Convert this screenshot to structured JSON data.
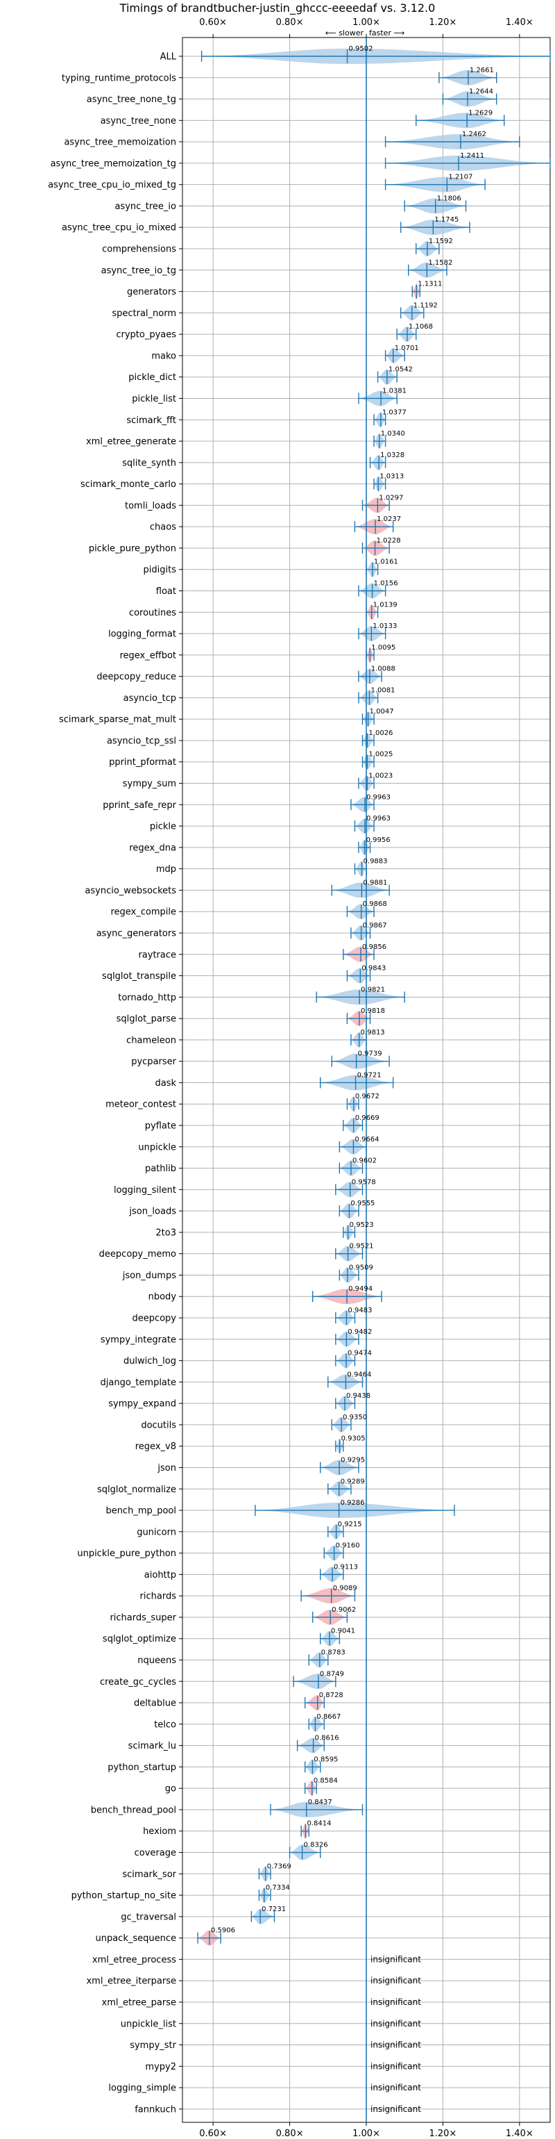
{
  "chart_data": {
    "type": "violin",
    "title": "Timings of brandtbucher-justin_ghccc-eeeedaf vs. 3.12.0",
    "annotation": {
      "slower": "⟵ slower",
      "faster": "faster ⟶"
    },
    "xlim": [
      0.52,
      1.48
    ],
    "xticks": [
      0.6,
      0.8,
      1.0,
      1.2,
      1.4
    ],
    "xtick_labels": [
      "0.60×",
      "0.80×",
      "1.00×",
      "1.20×",
      "1.40×"
    ],
    "grid": true,
    "reference_line": 1.0,
    "insignificant_text": "insignificant",
    "colors": {
      "faster": "#a6c8e6",
      "slower": "#f4a7ab",
      "line": "#1f77b4",
      "grid": "#b0b0b0"
    },
    "benchmarks": [
      {
        "name": "ALL",
        "mean": 0.9502,
        "min": 0.57,
        "max": 1.48,
        "status": "neutral"
      },
      {
        "name": "typing_runtime_protocols",
        "mean": 1.2661,
        "min": 1.19,
        "max": 1.34,
        "status": "faster"
      },
      {
        "name": "async_tree_none_tg",
        "mean": 1.2644,
        "min": 1.2,
        "max": 1.34,
        "status": "faster"
      },
      {
        "name": "async_tree_none",
        "mean": 1.2629,
        "min": 1.13,
        "max": 1.36,
        "status": "faster"
      },
      {
        "name": "async_tree_memoization",
        "mean": 1.2462,
        "min": 1.05,
        "max": 1.4,
        "status": "faster"
      },
      {
        "name": "async_tree_memoization_tg",
        "mean": 1.2411,
        "min": 1.05,
        "max": 1.48,
        "status": "faster"
      },
      {
        "name": "async_tree_cpu_io_mixed_tg",
        "mean": 1.2107,
        "min": 1.05,
        "max": 1.31,
        "status": "faster"
      },
      {
        "name": "async_tree_io",
        "mean": 1.1806,
        "min": 1.1,
        "max": 1.26,
        "status": "faster"
      },
      {
        "name": "async_tree_cpu_io_mixed",
        "mean": 1.1745,
        "min": 1.09,
        "max": 1.27,
        "status": "faster"
      },
      {
        "name": "comprehensions",
        "mean": 1.1592,
        "min": 1.13,
        "max": 1.19,
        "status": "faster"
      },
      {
        "name": "async_tree_io_tg",
        "mean": 1.1582,
        "min": 1.11,
        "max": 1.21,
        "status": "faster"
      },
      {
        "name": "generators",
        "mean": 1.1311,
        "min": 1.12,
        "max": 1.14,
        "status": "slower"
      },
      {
        "name": "spectral_norm",
        "mean": 1.1192,
        "min": 1.09,
        "max": 1.15,
        "status": "faster"
      },
      {
        "name": "crypto_pyaes",
        "mean": 1.1068,
        "min": 1.08,
        "max": 1.13,
        "status": "faster"
      },
      {
        "name": "mako",
        "mean": 1.0701,
        "min": 1.05,
        "max": 1.1,
        "status": "faster"
      },
      {
        "name": "pickle_dict",
        "mean": 1.0542,
        "min": 1.03,
        "max": 1.08,
        "status": "faster"
      },
      {
        "name": "pickle_list",
        "mean": 1.0381,
        "min": 0.98,
        "max": 1.08,
        "status": "faster"
      },
      {
        "name": "scimark_fft",
        "mean": 1.0377,
        "min": 1.02,
        "max": 1.05,
        "status": "faster"
      },
      {
        "name": "xml_etree_generate",
        "mean": 1.034,
        "min": 1.02,
        "max": 1.05,
        "status": "faster"
      },
      {
        "name": "sqlite_synth",
        "mean": 1.0328,
        "min": 1.01,
        "max": 1.05,
        "status": "faster"
      },
      {
        "name": "scimark_monte_carlo",
        "mean": 1.0313,
        "min": 1.02,
        "max": 1.05,
        "status": "faster"
      },
      {
        "name": "tomli_loads",
        "mean": 1.0297,
        "min": 0.99,
        "max": 1.06,
        "status": "slower"
      },
      {
        "name": "chaos",
        "mean": 1.0237,
        "min": 0.97,
        "max": 1.07,
        "status": "slower"
      },
      {
        "name": "pickle_pure_python",
        "mean": 1.0228,
        "min": 0.99,
        "max": 1.06,
        "status": "slower"
      },
      {
        "name": "pidigits",
        "mean": 1.0161,
        "min": 1.0,
        "max": 1.03,
        "status": "faster"
      },
      {
        "name": "float",
        "mean": 1.0156,
        "min": 0.98,
        "max": 1.05,
        "status": "faster"
      },
      {
        "name": "coroutines",
        "mean": 1.0139,
        "min": 1.0,
        "max": 1.03,
        "status": "slower"
      },
      {
        "name": "logging_format",
        "mean": 1.0133,
        "min": 0.98,
        "max": 1.05,
        "status": "faster"
      },
      {
        "name": "regex_effbot",
        "mean": 1.0095,
        "min": 1.0,
        "max": 1.02,
        "status": "slower"
      },
      {
        "name": "deepcopy_reduce",
        "mean": 1.0088,
        "min": 0.98,
        "max": 1.04,
        "status": "faster"
      },
      {
        "name": "asyncio_tcp",
        "mean": 1.0081,
        "min": 0.98,
        "max": 1.03,
        "status": "faster"
      },
      {
        "name": "scimark_sparse_mat_mult",
        "mean": 1.0047,
        "min": 0.99,
        "max": 1.02,
        "status": "faster"
      },
      {
        "name": "asyncio_tcp_ssl",
        "mean": 1.0026,
        "min": 0.99,
        "max": 1.02,
        "status": "faster"
      },
      {
        "name": "pprint_pformat",
        "mean": 1.0025,
        "min": 0.99,
        "max": 1.02,
        "status": "faster"
      },
      {
        "name": "sympy_sum",
        "mean": 1.0023,
        "min": 0.98,
        "max": 1.02,
        "status": "faster"
      },
      {
        "name": "pprint_safe_repr",
        "mean": 0.9963,
        "min": 0.96,
        "max": 1.02,
        "status": "faster"
      },
      {
        "name": "pickle",
        "mean": 0.9963,
        "min": 0.97,
        "max": 1.02,
        "status": "faster"
      },
      {
        "name": "regex_dna",
        "mean": 0.9956,
        "min": 0.98,
        "max": 1.01,
        "status": "faster"
      },
      {
        "name": "mdp",
        "mean": 0.9883,
        "min": 0.97,
        "max": 1.0,
        "status": "faster"
      },
      {
        "name": "asyncio_websockets",
        "mean": 0.9881,
        "min": 0.91,
        "max": 1.06,
        "status": "faster"
      },
      {
        "name": "regex_compile",
        "mean": 0.9868,
        "min": 0.95,
        "max": 1.02,
        "status": "faster"
      },
      {
        "name": "async_generators",
        "mean": 0.9867,
        "min": 0.96,
        "max": 1.01,
        "status": "faster"
      },
      {
        "name": "raytrace",
        "mean": 0.9856,
        "min": 0.94,
        "max": 1.02,
        "status": "slower"
      },
      {
        "name": "sqlglot_transpile",
        "mean": 0.9843,
        "min": 0.95,
        "max": 1.01,
        "status": "faster"
      },
      {
        "name": "tornado_http",
        "mean": 0.9821,
        "min": 0.87,
        "max": 1.1,
        "status": "faster"
      },
      {
        "name": "sqlglot_parse",
        "mean": 0.9818,
        "min": 0.95,
        "max": 1.01,
        "status": "slower"
      },
      {
        "name": "chameleon",
        "mean": 0.9813,
        "min": 0.96,
        "max": 1.0,
        "status": "faster"
      },
      {
        "name": "pycparser",
        "mean": 0.9739,
        "min": 0.91,
        "max": 1.06,
        "status": "faster"
      },
      {
        "name": "dask",
        "mean": 0.9721,
        "min": 0.88,
        "max": 1.07,
        "status": "faster"
      },
      {
        "name": "meteor_contest",
        "mean": 0.9672,
        "min": 0.95,
        "max": 0.98,
        "status": "faster"
      },
      {
        "name": "pyflate",
        "mean": 0.9669,
        "min": 0.94,
        "max": 0.99,
        "status": "faster"
      },
      {
        "name": "unpickle",
        "mean": 0.9664,
        "min": 0.93,
        "max": 1.0,
        "status": "faster"
      },
      {
        "name": "pathlib",
        "mean": 0.9602,
        "min": 0.93,
        "max": 0.99,
        "status": "faster"
      },
      {
        "name": "logging_silent",
        "mean": 0.9578,
        "min": 0.92,
        "max": 0.99,
        "status": "faster"
      },
      {
        "name": "json_loads",
        "mean": 0.9555,
        "min": 0.93,
        "max": 0.98,
        "status": "faster"
      },
      {
        "name": "2to3",
        "mean": 0.9523,
        "min": 0.94,
        "max": 0.97,
        "status": "faster"
      },
      {
        "name": "deepcopy_memo",
        "mean": 0.9521,
        "min": 0.92,
        "max": 0.99,
        "status": "faster"
      },
      {
        "name": "json_dumps",
        "mean": 0.9509,
        "min": 0.93,
        "max": 0.98,
        "status": "faster"
      },
      {
        "name": "nbody",
        "mean": 0.9494,
        "min": 0.86,
        "max": 1.04,
        "status": "slower"
      },
      {
        "name": "deepcopy",
        "mean": 0.9483,
        "min": 0.92,
        "max": 0.97,
        "status": "faster"
      },
      {
        "name": "sympy_integrate",
        "mean": 0.9482,
        "min": 0.92,
        "max": 0.98,
        "status": "faster"
      },
      {
        "name": "dulwich_log",
        "mean": 0.9474,
        "min": 0.92,
        "max": 0.97,
        "status": "faster"
      },
      {
        "name": "django_template",
        "mean": 0.9464,
        "min": 0.9,
        "max": 0.99,
        "status": "faster"
      },
      {
        "name": "sympy_expand",
        "mean": 0.9438,
        "min": 0.92,
        "max": 0.97,
        "status": "faster"
      },
      {
        "name": "docutils",
        "mean": 0.935,
        "min": 0.91,
        "max": 0.96,
        "status": "faster"
      },
      {
        "name": "regex_v8",
        "mean": 0.9305,
        "min": 0.92,
        "max": 0.94,
        "status": "faster"
      },
      {
        "name": "json",
        "mean": 0.9295,
        "min": 0.88,
        "max": 0.98,
        "status": "faster"
      },
      {
        "name": "sqlglot_normalize",
        "mean": 0.9289,
        "min": 0.9,
        "max": 0.96,
        "status": "faster"
      },
      {
        "name": "bench_mp_pool",
        "mean": 0.9286,
        "min": 0.71,
        "max": 1.23,
        "status": "faster"
      },
      {
        "name": "gunicorn",
        "mean": 0.9215,
        "min": 0.9,
        "max": 0.94,
        "status": "faster"
      },
      {
        "name": "unpickle_pure_python",
        "mean": 0.916,
        "min": 0.89,
        "max": 0.94,
        "status": "faster"
      },
      {
        "name": "aiohttp",
        "mean": 0.9113,
        "min": 0.88,
        "max": 0.94,
        "status": "faster"
      },
      {
        "name": "richards",
        "mean": 0.9089,
        "min": 0.83,
        "max": 0.97,
        "status": "slower"
      },
      {
        "name": "richards_super",
        "mean": 0.9062,
        "min": 0.86,
        "max": 0.95,
        "status": "slower"
      },
      {
        "name": "sqlglot_optimize",
        "mean": 0.9041,
        "min": 0.88,
        "max": 0.93,
        "status": "faster"
      },
      {
        "name": "nqueens",
        "mean": 0.8783,
        "min": 0.85,
        "max": 0.9,
        "status": "faster"
      },
      {
        "name": "create_gc_cycles",
        "mean": 0.8749,
        "min": 0.81,
        "max": 0.92,
        "status": "faster"
      },
      {
        "name": "deltablue",
        "mean": 0.8728,
        "min": 0.84,
        "max": 0.89,
        "status": "slower"
      },
      {
        "name": "telco",
        "mean": 0.8667,
        "min": 0.85,
        "max": 0.89,
        "status": "faster"
      },
      {
        "name": "scimark_lu",
        "mean": 0.8616,
        "min": 0.82,
        "max": 0.89,
        "status": "faster"
      },
      {
        "name": "python_startup",
        "mean": 0.8595,
        "min": 0.84,
        "max": 0.88,
        "status": "faster"
      },
      {
        "name": "go",
        "mean": 0.8584,
        "min": 0.84,
        "max": 0.87,
        "status": "slower"
      },
      {
        "name": "bench_thread_pool",
        "mean": 0.8437,
        "min": 0.75,
        "max": 0.99,
        "status": "faster"
      },
      {
        "name": "hexiom",
        "mean": 0.8414,
        "min": 0.83,
        "max": 0.85,
        "status": "slower"
      },
      {
        "name": "coverage",
        "mean": 0.8326,
        "min": 0.8,
        "max": 0.88,
        "status": "faster"
      },
      {
        "name": "scimark_sor",
        "mean": 0.7369,
        "min": 0.72,
        "max": 0.75,
        "status": "faster"
      },
      {
        "name": "python_startup_no_site",
        "mean": 0.7334,
        "min": 0.72,
        "max": 0.75,
        "status": "faster"
      },
      {
        "name": "gc_traversal",
        "mean": 0.7231,
        "min": 0.7,
        "max": 0.76,
        "status": "faster"
      },
      {
        "name": "unpack_sequence",
        "mean": 0.5906,
        "min": 0.56,
        "max": 0.62,
        "status": "slower"
      },
      {
        "name": "xml_etree_process",
        "insignificant": true
      },
      {
        "name": "xml_etree_iterparse",
        "insignificant": true
      },
      {
        "name": "xml_etree_parse",
        "insignificant": true
      },
      {
        "name": "unpickle_list",
        "insignificant": true
      },
      {
        "name": "sympy_str",
        "insignificant": true
      },
      {
        "name": "mypy2",
        "insignificant": true
      },
      {
        "name": "logging_simple",
        "insignificant": true
      },
      {
        "name": "fannkuch",
        "insignificant": true
      }
    ]
  }
}
